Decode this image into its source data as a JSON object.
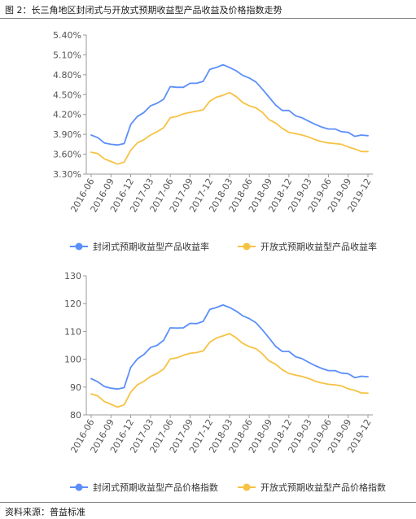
{
  "figure": {
    "title": "图 2：长三角地区封闭式与开放式预期收益型产品收益及价格指数走势",
    "source": "资料来源：普益标准"
  },
  "colors": {
    "series_closed": "#5b8ff9",
    "series_open": "#f6c244",
    "axis": "#999999",
    "grid": "#e8e8e8",
    "text": "#555555"
  },
  "chart_data": [
    {
      "type": "line",
      "title": "",
      "xlabel": "",
      "ylabel": "",
      "x_tick_labels": [
        "2016-06",
        "2016-09",
        "2016-12",
        "2017-03",
        "2017-06",
        "2017-09",
        "2017-12",
        "2018-03",
        "2018-06",
        "2018-09",
        "2018-12",
        "2019-03",
        "2019-06",
        "2019-09",
        "2019-12"
      ],
      "y_ticks": [
        3.3,
        3.6,
        3.9,
        4.2,
        4.5,
        4.8,
        5.1,
        5.4
      ],
      "y_tick_labels": [
        "3.30%",
        "3.60%",
        "3.90%",
        "4.20%",
        "4.50%",
        "4.80%",
        "5.10%",
        "5.40%"
      ],
      "ylim": [
        3.3,
        5.4
      ],
      "grid": false,
      "legend_position": "bottom",
      "series": [
        {
          "name": "封闭式预期收益型产品收益率",
          "color_key": "series_closed",
          "values": [
            3.89,
            3.85,
            3.77,
            3.75,
            3.74,
            3.76,
            4.05,
            4.17,
            4.23,
            4.33,
            4.37,
            4.43,
            4.62,
            4.61,
            4.61,
            4.67,
            4.67,
            4.7,
            4.88,
            4.91,
            4.95,
            4.91,
            4.86,
            4.79,
            4.75,
            4.69,
            4.58,
            4.46,
            4.34,
            4.26,
            4.26,
            4.18,
            4.15,
            4.1,
            4.05,
            4.01,
            3.98,
            3.98,
            3.94,
            3.93,
            3.87,
            3.89,
            3.88
          ]
        },
        {
          "name": "开放式预期收益型产品收益率",
          "color_key": "series_open",
          "values": [
            3.63,
            3.61,
            3.53,
            3.49,
            3.45,
            3.48,
            3.66,
            3.77,
            3.82,
            3.89,
            3.94,
            4.0,
            4.15,
            4.17,
            4.21,
            4.23,
            4.25,
            4.27,
            4.4,
            4.46,
            4.49,
            4.53,
            4.47,
            4.38,
            4.33,
            4.3,
            4.23,
            4.12,
            4.07,
            3.99,
            3.93,
            3.91,
            3.89,
            3.86,
            3.82,
            3.79,
            3.77,
            3.76,
            3.75,
            3.71,
            3.68,
            3.64,
            3.64
          ]
        }
      ]
    },
    {
      "type": "line",
      "title": "",
      "xlabel": "",
      "ylabel": "",
      "x_tick_labels": [
        "2016-06",
        "2016-09",
        "2016-12",
        "2017-03",
        "2017-06",
        "2017-09",
        "2017-12",
        "2018-03",
        "2018-06",
        "2018-09",
        "2018-12",
        "2019-03",
        "2019-06",
        "2019-09",
        "2019-12"
      ],
      "y_ticks": [
        80,
        90,
        100,
        110,
        120,
        130
      ],
      "y_tick_labels": [
        "80",
        "90",
        "100",
        "110",
        "120",
        "130"
      ],
      "ylim": [
        80,
        130
      ],
      "grid": false,
      "legend_position": "bottom",
      "series": [
        {
          "name": "封闭式预期收益型产品价格指数",
          "color_key": "series_closed",
          "values": [
            93.0,
            91.9,
            90.2,
            89.6,
            89.3,
            89.8,
            97.1,
            100.1,
            101.7,
            104.2,
            105.0,
            106.8,
            111.3,
            111.2,
            111.3,
            112.9,
            112.8,
            113.6,
            117.9,
            118.6,
            119.5,
            118.6,
            117.3,
            115.6,
            114.6,
            113.1,
            110.5,
            107.6,
            104.6,
            102.8,
            102.8,
            100.9,
            100.2,
            98.9,
            97.7,
            96.7,
            95.9,
            95.9,
            95.0,
            94.8,
            93.4,
            93.9,
            93.7
          ]
        },
        {
          "name": "开放式预期收益型产品价格指数",
          "color_key": "series_open",
          "values": [
            87.5,
            86.8,
            84.8,
            83.8,
            82.8,
            83.6,
            88.2,
            90.8,
            92.1,
            93.8,
            94.9,
            96.5,
            100.1,
            100.5,
            101.4,
            102.1,
            102.4,
            103.0,
            106.1,
            107.6,
            108.4,
            109.2,
            107.7,
            105.7,
            104.5,
            103.8,
            101.9,
            99.4,
            98.2,
            96.2,
            94.9,
            94.3,
            93.8,
            93.1,
            92.1,
            91.5,
            91.0,
            90.8,
            90.4,
            89.4,
            88.8,
            87.9,
            87.8
          ]
        }
      ]
    }
  ]
}
